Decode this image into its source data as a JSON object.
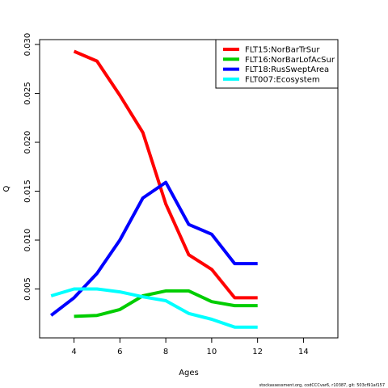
{
  "chart_data": {
    "type": "line",
    "xlabel": "Ages",
    "ylabel": "Q",
    "xlim": [
      2.5,
      15.5
    ],
    "ylim": [
      0.0,
      0.0305
    ],
    "xticks": [
      4,
      6,
      8,
      10,
      12,
      14
    ],
    "yticks": [
      0.005,
      0.01,
      0.015,
      0.02,
      0.025,
      0.03
    ],
    "ytick_labels": [
      "0.005",
      "0.010",
      "0.015",
      "0.020",
      "0.025",
      "0.030"
    ],
    "grid": false,
    "legend_position": "top-right",
    "series": [
      {
        "name": "FLT15:NorBarTrSur",
        "color": "#ff0000",
        "x": [
          4,
          5,
          6,
          7,
          8,
          9,
          10,
          11,
          12
        ],
        "y": [
          0.0293,
          0.0283,
          0.0248,
          0.021,
          0.0137,
          0.0085,
          0.007,
          0.0041,
          0.0041
        ]
      },
      {
        "name": "FLT16:NorBarLofAcSur",
        "color": "#00cd00",
        "x": [
          4,
          5,
          6,
          7,
          8,
          9,
          10,
          11,
          12
        ],
        "y": [
          0.0022,
          0.0023,
          0.0029,
          0.0043,
          0.0048,
          0.0048,
          0.0037,
          0.0033,
          0.0033
        ]
      },
      {
        "name": "FLT18:RusSweptArea",
        "color": "#0000ff",
        "x": [
          3,
          4,
          5,
          6,
          7,
          8,
          9,
          10,
          11,
          12
        ],
        "y": [
          0.0023,
          0.0041,
          0.0066,
          0.01,
          0.0143,
          0.0159,
          0.0116,
          0.0106,
          0.0076,
          0.0076
        ]
      },
      {
        "name": "FLT007:Ecosystem",
        "color": "#00ffff",
        "x": [
          3,
          4,
          5,
          6,
          7,
          8,
          9,
          10,
          11,
          12
        ],
        "y": [
          0.0043,
          0.005,
          0.005,
          0.0047,
          0.0042,
          0.0038,
          0.0025,
          0.0019,
          0.0011,
          0.0011
        ]
      }
    ]
  },
  "footnote": "stockassessment.org, codCCCvar6, r10387, git: 503cf91af157"
}
